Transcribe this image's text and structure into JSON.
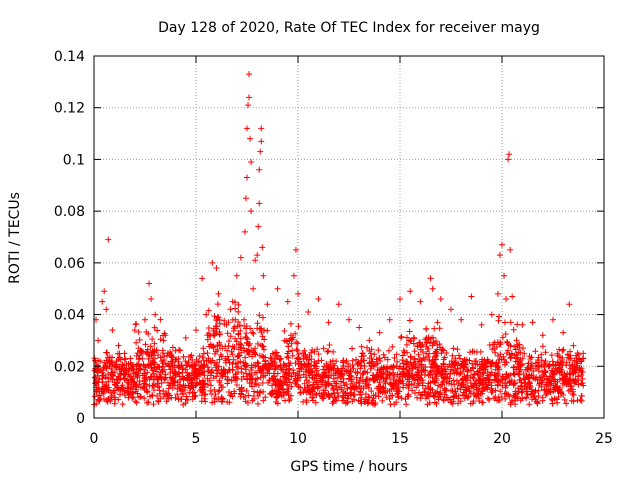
{
  "chart_data": {
    "type": "scatter",
    "title": "Day 128 of 2020, Rate Of TEC Index for receiver mayg",
    "xlabel": "GPS time / hours",
    "ylabel": "ROTI / TECUs",
    "xlim": [
      0,
      25
    ],
    "ylim": [
      0,
      0.14
    ],
    "xticks": [
      0,
      5,
      10,
      15,
      20,
      25
    ],
    "yticks": [
      0,
      0.02,
      0.04,
      0.06,
      0.08,
      0.1,
      0.12,
      0.14
    ],
    "xtick_labels": [
      "0",
      "5",
      "10",
      "15",
      "20",
      "25"
    ],
    "ytick_labels": [
      "0",
      "0.02",
      "0.04",
      "0.06",
      "0.08",
      "0.1",
      "0.12",
      "0.14"
    ],
    "grid": true,
    "marker": "+",
    "color": "#ff0000",
    "series": [
      {
        "name": "ROTI",
        "x": [
          0.1,
          0.2,
          0.3,
          0.4,
          0.5,
          0.6,
          0.7,
          0.9,
          1.2,
          1.5,
          2.0,
          2.5,
          2.7,
          2.8,
          3.0,
          3.5,
          4.0,
          4.5,
          5.0,
          5.3,
          5.5,
          5.8,
          6.0,
          6.1,
          6.5,
          6.8,
          7.0,
          7.2,
          7.4,
          7.45,
          7.5,
          7.5,
          7.55,
          7.6,
          7.6,
          7.65,
          7.7,
          7.7,
          7.8,
          7.9,
          8.0,
          8.05,
          8.1,
          8.1,
          8.15,
          8.2,
          8.2,
          8.25,
          8.3,
          8.5,
          9.0,
          9.5,
          9.8,
          9.9,
          10.0,
          10.5,
          11.0,
          11.5,
          12.0,
          12.5,
          13.0,
          13.5,
          14.0,
          14.5,
          15.0,
          15.5,
          16.0,
          16.5,
          16.6,
          17.0,
          17.5,
          18.0,
          18.5,
          19.0,
          19.5,
          19.8,
          19.9,
          20.0,
          20.1,
          20.2,
          20.3,
          20.35,
          20.4,
          20.5,
          21.0,
          21.5,
          22.0,
          22.5,
          23.0,
          23.3,
          23.5,
          23.9
        ],
        "y": [
          0.038,
          0.03,
          0.022,
          0.045,
          0.049,
          0.042,
          0.069,
          0.034,
          0.028,
          0.025,
          0.034,
          0.038,
          0.052,
          0.046,
          0.04,
          0.032,
          0.026,
          0.031,
          0.034,
          0.054,
          0.04,
          0.06,
          0.058,
          0.048,
          0.036,
          0.045,
          0.055,
          0.062,
          0.072,
          0.085,
          0.093,
          0.112,
          0.121,
          0.124,
          0.133,
          0.108,
          0.099,
          0.08,
          0.05,
          0.061,
          0.063,
          0.074,
          0.083,
          0.096,
          0.103,
          0.107,
          0.112,
          0.066,
          0.055,
          0.044,
          0.05,
          0.045,
          0.055,
          0.065,
          0.048,
          0.041,
          0.046,
          0.037,
          0.044,
          0.038,
          0.035,
          0.03,
          0.033,
          0.038,
          0.046,
          0.049,
          0.045,
          0.054,
          0.05,
          0.046,
          0.042,
          0.038,
          0.047,
          0.036,
          0.04,
          0.048,
          0.063,
          0.067,
          0.055,
          0.046,
          0.1,
          0.102,
          0.065,
          0.047,
          0.036,
          0.037,
          0.032,
          0.038,
          0.033,
          0.044,
          0.028,
          0.022
        ]
      }
    ]
  }
}
